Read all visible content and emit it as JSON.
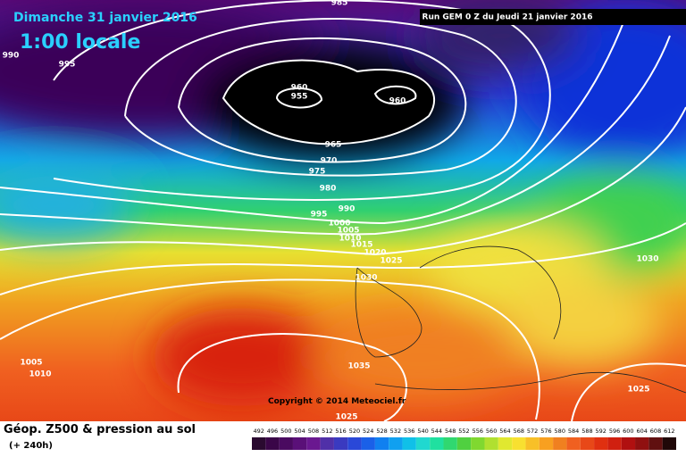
{
  "header": {
    "date": "Dimanche 31 janvier 2016",
    "time": "1:00 locale",
    "run": "Run GEM 0 Z du Jeudi 21 janvier 2016"
  },
  "copyright": "Copyright © 2014 Meteociel.fr",
  "footer": {
    "title": "Géop. Z500 & pression au sol",
    "subtitle": "(+ 240h)"
  },
  "legend": {
    "ticks": [
      492,
      496,
      500,
      504,
      508,
      512,
      516,
      520,
      524,
      528,
      532,
      536,
      540,
      544,
      548,
      552,
      556,
      560,
      564,
      568,
      572,
      576,
      580,
      584,
      588,
      592,
      596,
      600,
      604,
      608,
      612
    ],
    "colors": [
      "#2a0a30",
      "#3a0648",
      "#4a0a60",
      "#5a1078",
      "#6a1890",
      "#5030a8",
      "#3a3ac0",
      "#2a48d8",
      "#1a60e8",
      "#1080f0",
      "#10a0f0",
      "#10c0e8",
      "#20d8d0",
      "#20e0a0",
      "#30d870",
      "#50d040",
      "#80d830",
      "#b0e030",
      "#e0e830",
      "#f8e030",
      "#f8c028",
      "#f8a020",
      "#f08020",
      "#f06020",
      "#e84818",
      "#e03010",
      "#d02010",
      "#b01010",
      "#901010",
      "#601010",
      "#200808"
    ]
  },
  "isobar_labels": [
    "985",
    "990",
    "995",
    "960",
    "955",
    "960",
    "965",
    "970",
    "975",
    "980",
    "990",
    "995",
    "1000",
    "1005",
    "1010",
    "1015",
    "1020",
    "1025",
    "1030",
    "1030",
    "1005",
    "1010",
    "1035",
    "1025",
    "1025"
  ]
}
